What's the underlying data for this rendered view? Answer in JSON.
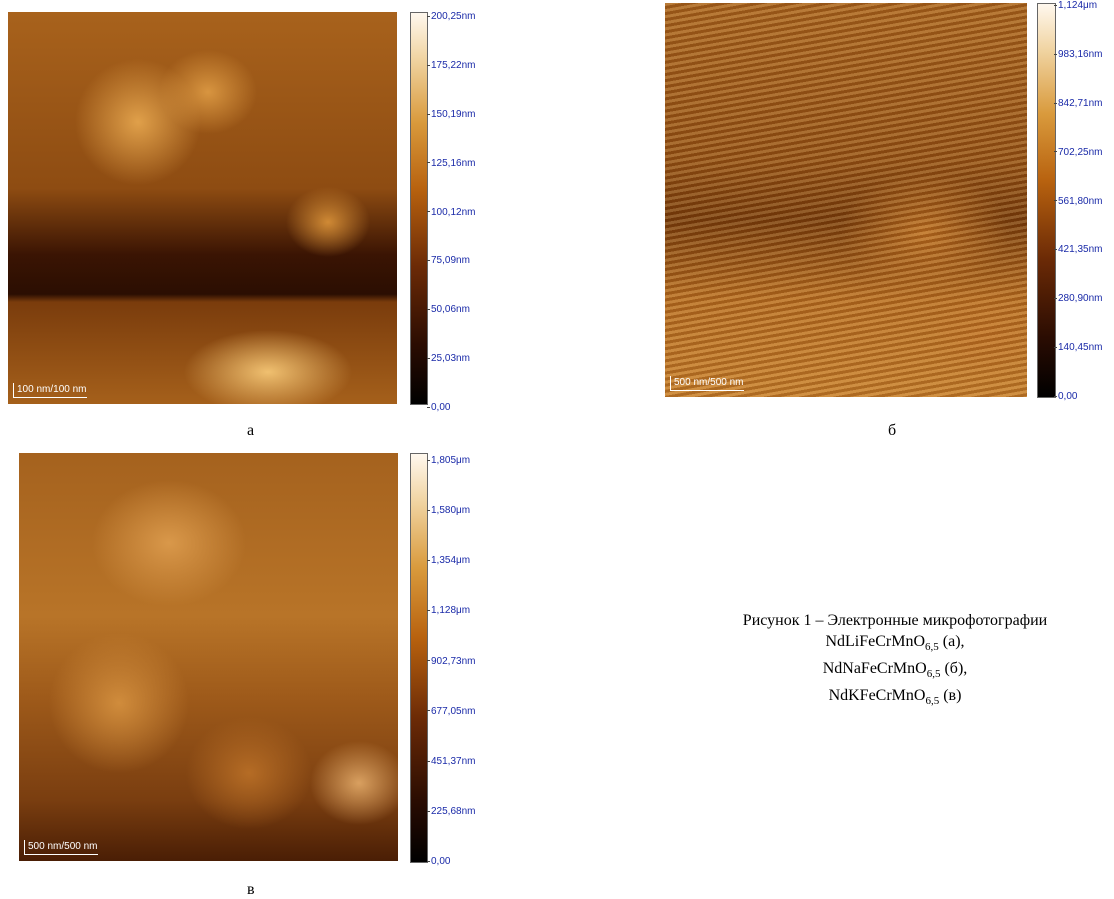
{
  "panels": [
    {
      "label": "а",
      "scale_bar": "100 nm/100 nm",
      "colorbar_ticks": [
        "200,25nm",
        "175,22nm",
        "150,19nm",
        "125,16nm",
        "100,12nm",
        "75,09nm",
        "50,06nm",
        "25,03nm",
        "0,00"
      ]
    },
    {
      "label": "б",
      "scale_bar": "500 nm/500 nm",
      "colorbar_ticks": [
        "1,124μm",
        "983,16nm",
        "842,71nm",
        "702,25nm",
        "561,80nm",
        "421,35nm",
        "280,90nm",
        "140,45nm",
        "0,00"
      ]
    },
    {
      "label": "в",
      "scale_bar": "500 nm/500 nm",
      "colorbar_ticks": [
        "1,805μm",
        "1,580μm",
        "1,354μm",
        "1,128μm",
        "902,73nm",
        "677,05nm",
        "451,37nm",
        "225,68nm",
        "0,00"
      ]
    }
  ],
  "caption": {
    "title": "Рисунок 1 – Электронные микрофотографии",
    "lines": [
      {
        "formula": "NdLiFeCrMnO",
        "subscript": "6,5",
        "suffix": "(а),"
      },
      {
        "formula": "NdNaFeCrMnO",
        "subscript": "6,5",
        "suffix": "(б),"
      },
      {
        "formula": "NdKFeCrMnO",
        "subscript": "6,5",
        "suffix": "(в)"
      }
    ]
  }
}
